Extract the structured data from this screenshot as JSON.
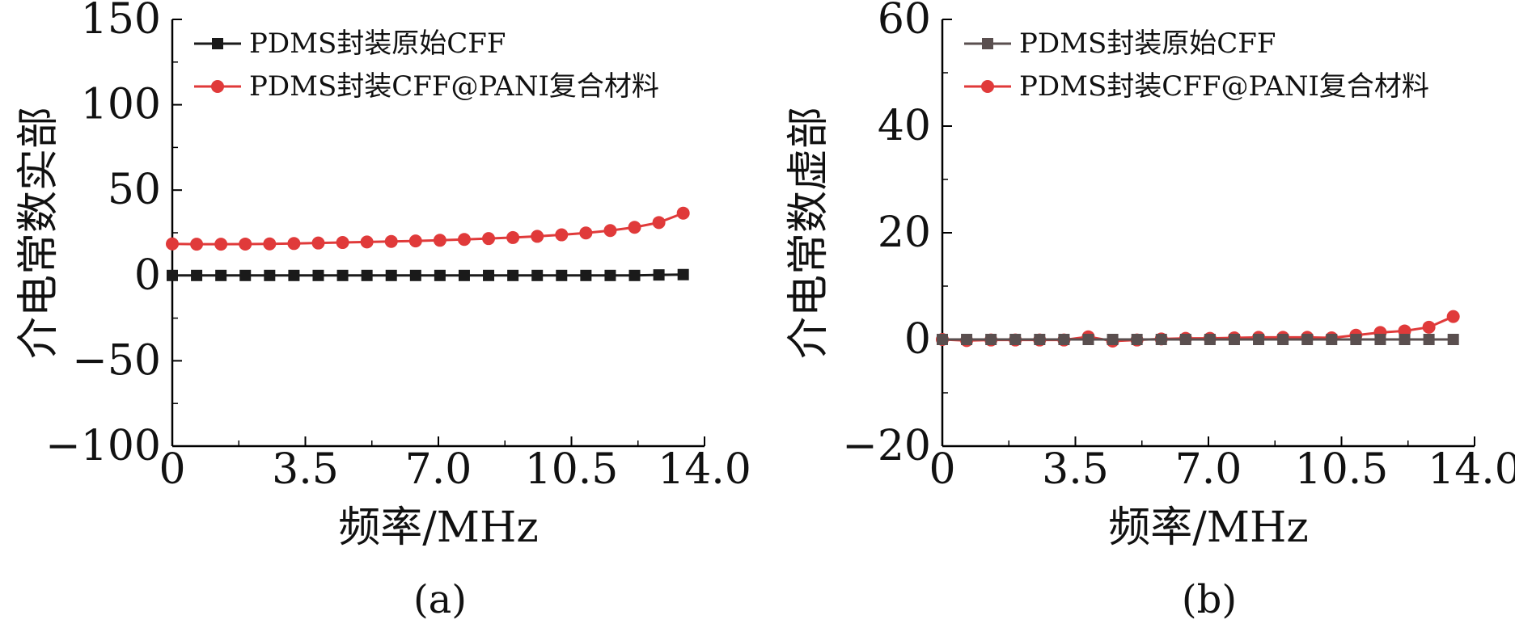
{
  "chart_data": [
    {
      "panel_label": "(a)",
      "type": "line",
      "xlabel": "频率/MHz",
      "ylabel": "介电常数实部",
      "xlim": [
        0,
        14.0
      ],
      "ylim": [
        -100,
        150
      ],
      "xticks": [
        0,
        3.5,
        7.0,
        10.5,
        14.0
      ],
      "xtick_labels": [
        "0",
        "3.5",
        "7.0",
        "10.5",
        "14.0"
      ],
      "yticks": [
        150,
        100,
        50,
        0,
        -50,
        -100
      ],
      "ytick_labels": [
        "150",
        "100",
        "50",
        "0",
        "−50",
        "−100"
      ],
      "legend_position": "top-left",
      "x": [
        0,
        0.64,
        1.28,
        1.92,
        2.56,
        3.2,
        3.84,
        4.48,
        5.12,
        5.76,
        6.4,
        7.04,
        7.68,
        8.32,
        8.96,
        9.6,
        10.24,
        10.88,
        11.52,
        12.16,
        12.8,
        13.44
      ],
      "series": [
        {
          "name": "PDMS封装原始CFF",
          "color": "#1a1a1a",
          "marker": "square",
          "values": [
            0,
            0,
            0,
            0,
            0,
            0,
            0,
            0,
            0,
            0,
            0,
            0,
            0,
            0,
            0,
            0,
            0,
            0,
            0,
            0,
            0.3,
            0.5
          ]
        },
        {
          "name": "PDMS封装CFF@PANI复合材料",
          "color": "#e03a3a",
          "marker": "circle",
          "values": [
            18.5,
            18.3,
            18.3,
            18.4,
            18.5,
            18.7,
            19,
            19.3,
            19.6,
            19.9,
            20.2,
            20.6,
            21.1,
            21.6,
            22.2,
            22.9,
            23.8,
            24.9,
            26.3,
            28.2,
            31,
            36.5
          ]
        }
      ]
    },
    {
      "panel_label": "(b)",
      "type": "line",
      "xlabel": "频率/MHz",
      "ylabel": "介电常数虚部",
      "xlim": [
        0,
        14.0
      ],
      "ylim": [
        -20,
        60
      ],
      "xticks": [
        0,
        3.5,
        7.0,
        10.5,
        14.0
      ],
      "xtick_labels": [
        "0",
        "3.5",
        "7.0",
        "10.5",
        "14.0"
      ],
      "yticks": [
        60,
        40,
        20,
        0,
        -20
      ],
      "ytick_labels": [
        "60",
        "40",
        "20",
        "0",
        "−20"
      ],
      "legend_position": "top-left",
      "x": [
        0,
        0.64,
        1.28,
        1.92,
        2.56,
        3.2,
        3.84,
        4.48,
        5.12,
        5.76,
        6.4,
        7.04,
        7.68,
        8.32,
        8.96,
        9.6,
        10.24,
        10.88,
        11.52,
        12.16,
        12.8,
        13.44
      ],
      "series": [
        {
          "name": "PDMS封装原始CFF",
          "color": "#5a4f4f",
          "marker": "square",
          "values": [
            0,
            0,
            0,
            0,
            0,
            0,
            0,
            0,
            0,
            0,
            0,
            0,
            0,
            0,
            0,
            0,
            0,
            0,
            0,
            0,
            0,
            0
          ]
        },
        {
          "name": "PDMS封装CFF@PANI复合材料",
          "color": "#e03a3a",
          "marker": "circle",
          "values": [
            0,
            -0.2,
            -0.1,
            -0.1,
            -0.1,
            -0.1,
            0.5,
            -0.3,
            -0.1,
            0.1,
            0.2,
            0.2,
            0.3,
            0.4,
            0.4,
            0.4,
            0.3,
            0.8,
            1.3,
            1.6,
            2.3,
            4.3
          ]
        }
      ]
    }
  ]
}
